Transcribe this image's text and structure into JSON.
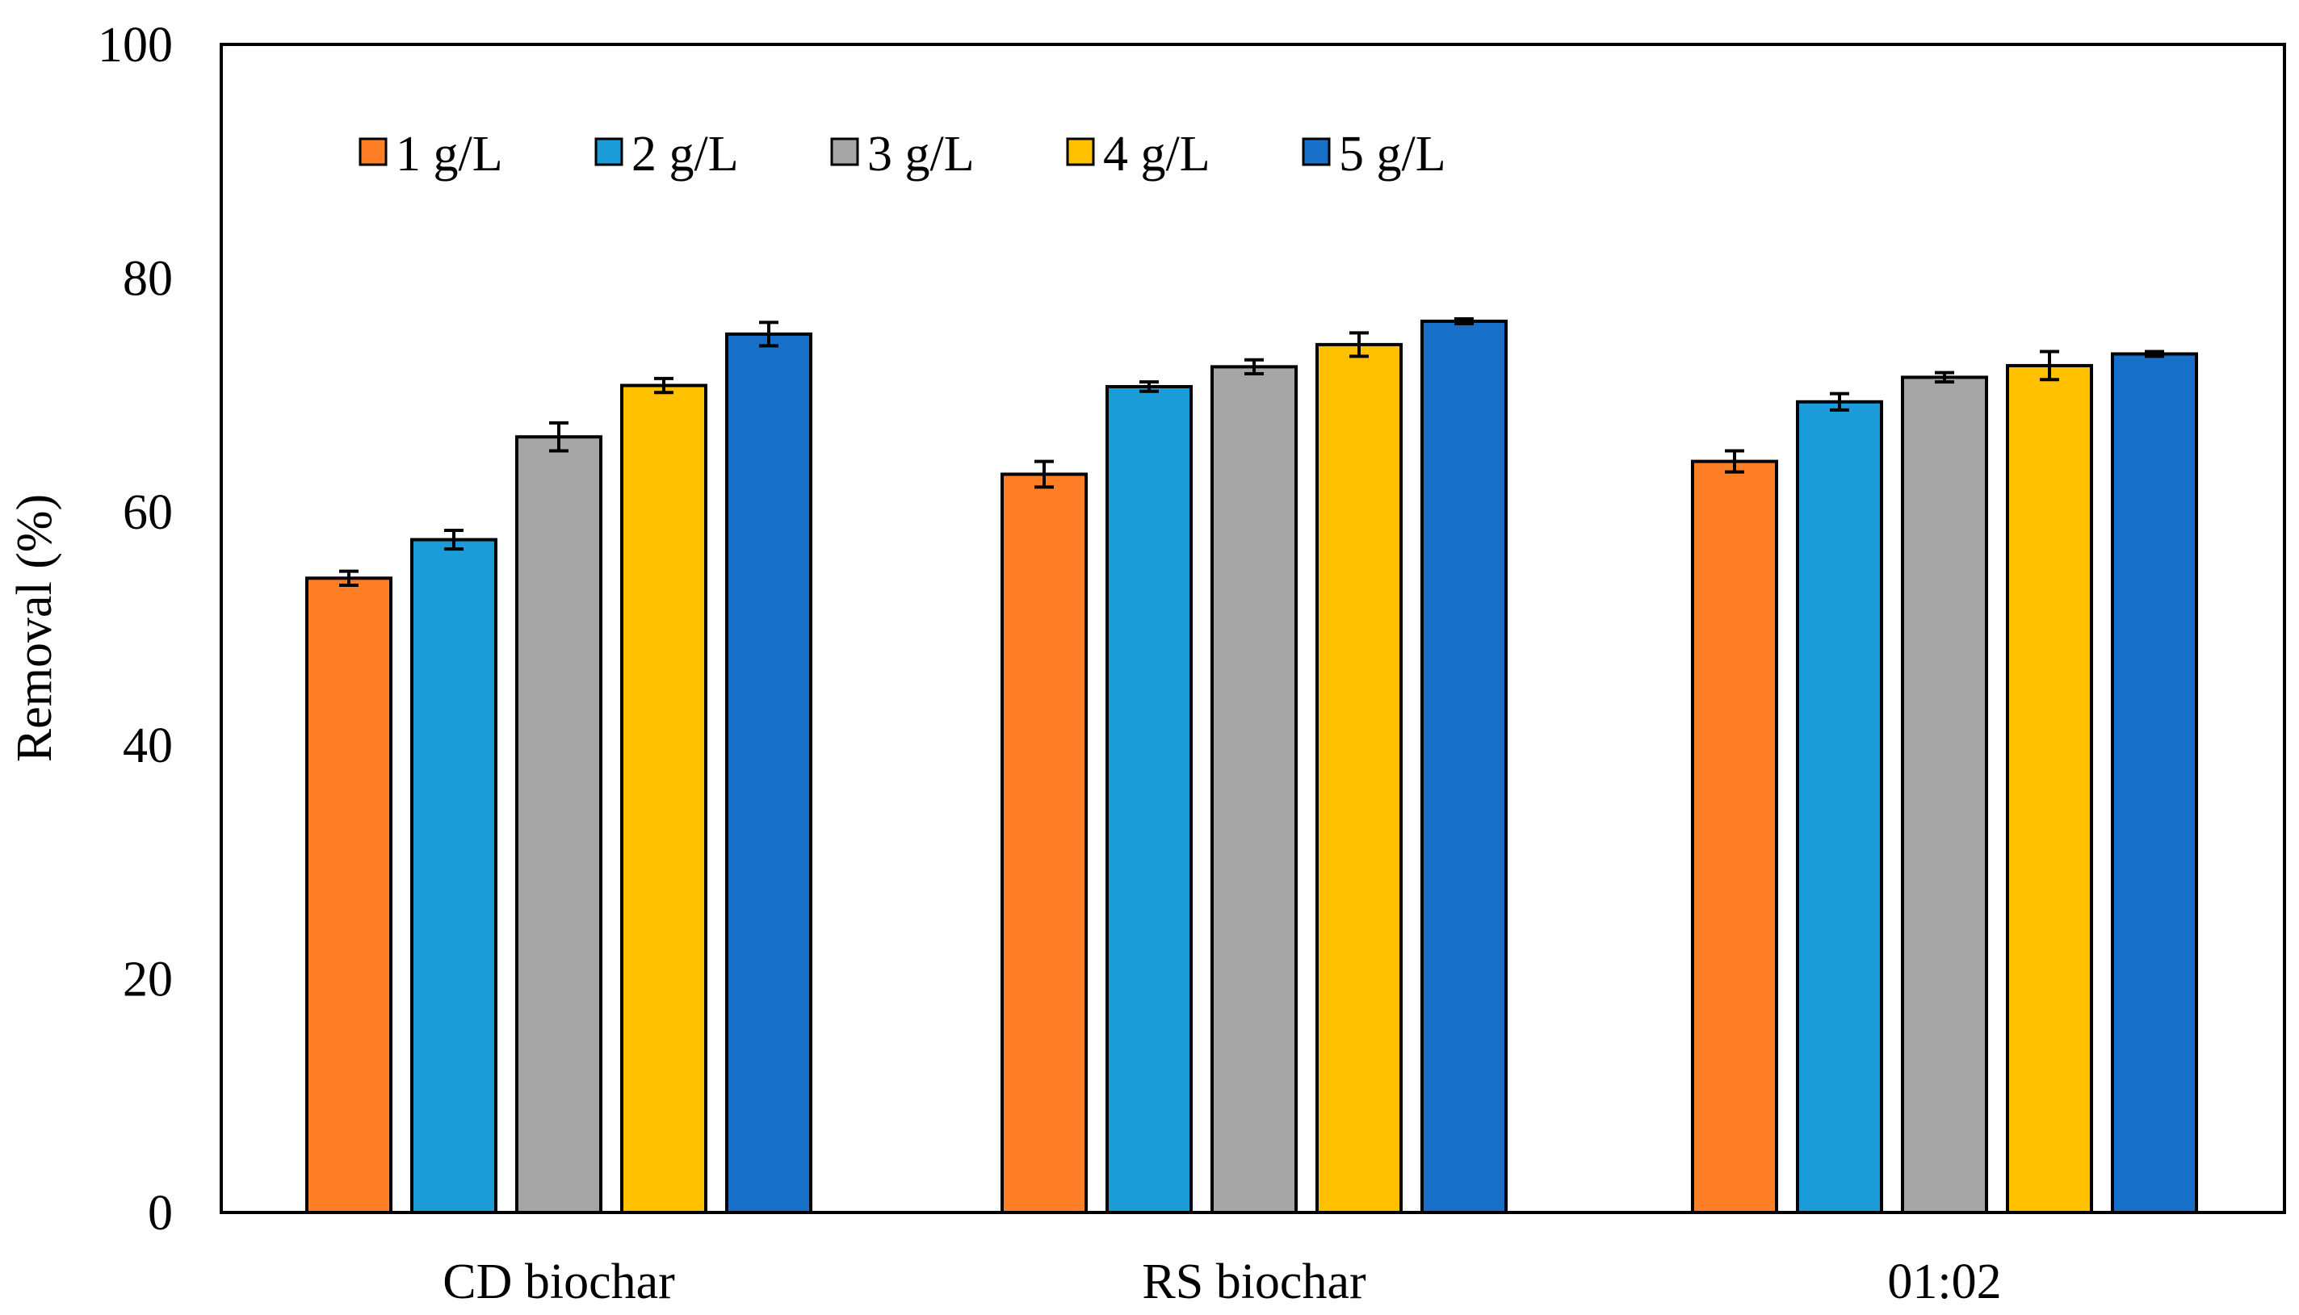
{
  "chart_data": {
    "type": "bar",
    "title": "",
    "xlabel": "",
    "ylabel": "Removal (%)",
    "ylim": [
      0,
      100
    ],
    "yticks": [
      0,
      20,
      40,
      60,
      80,
      100
    ],
    "grid": false,
    "legend_position": "top-left",
    "categories": [
      "CD biochar",
      "RS biochar",
      "01:02"
    ],
    "series": [
      {
        "name": "1 g/L",
        "color": "#FF7F27",
        "values": [
          54.3,
          63.2,
          64.3
        ],
        "errors": [
          0.6,
          1.1,
          0.9
        ]
      },
      {
        "name": "2 g/L",
        "color": "#1B9BD8",
        "values": [
          57.6,
          70.7,
          69.4
        ],
        "errors": [
          0.8,
          0.4,
          0.7
        ]
      },
      {
        "name": "3 g/L",
        "color": "#A6A6A6",
        "values": [
          66.4,
          72.4,
          71.5
        ],
        "errors": [
          1.2,
          0.6,
          0.4
        ]
      },
      {
        "name": "4 g/L",
        "color": "#FFC000",
        "values": [
          70.8,
          74.3,
          72.5
        ],
        "errors": [
          0.6,
          1.0,
          1.2
        ]
      },
      {
        "name": "5 g/L",
        "color": "#1870C8",
        "values": [
          75.2,
          76.3,
          73.5
        ],
        "errors": [
          1.0,
          0.2,
          0.2
        ]
      }
    ]
  }
}
